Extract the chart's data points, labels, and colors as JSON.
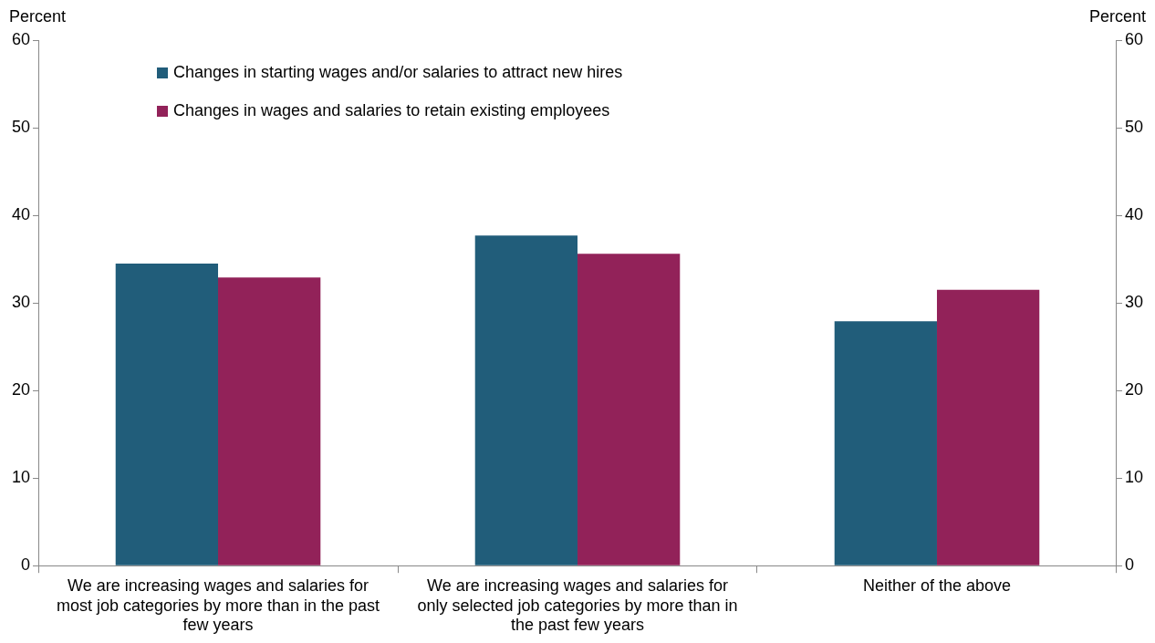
{
  "chart_data": {
    "type": "bar",
    "categories": [
      "We are increasing wages and salaries for most job categories by more than in the past few years",
      "We are increasing wages and salaries for only selected job categories by more than in the past few years",
      "Neither of the above"
    ],
    "series": [
      {
        "name": "Changes in starting wages and/or salaries to attract new hires",
        "color": "#215d7a",
        "values": [
          34.5,
          37.7,
          27.9
        ]
      },
      {
        "name": "Changes in wages and salaries to retain existing employees",
        "color": "#922259",
        "values": [
          32.9,
          35.6,
          31.5
        ]
      }
    ],
    "ylabel": "Percent",
    "y2label": "Percent",
    "ylim": [
      0,
      60
    ],
    "yticks": [
      0,
      10,
      20,
      30,
      40,
      50,
      60
    ],
    "y2lim": [
      0,
      60
    ],
    "y2ticks": [
      0,
      10,
      20,
      30,
      40,
      50,
      60
    ],
    "grid": false,
    "legend": "top left"
  }
}
